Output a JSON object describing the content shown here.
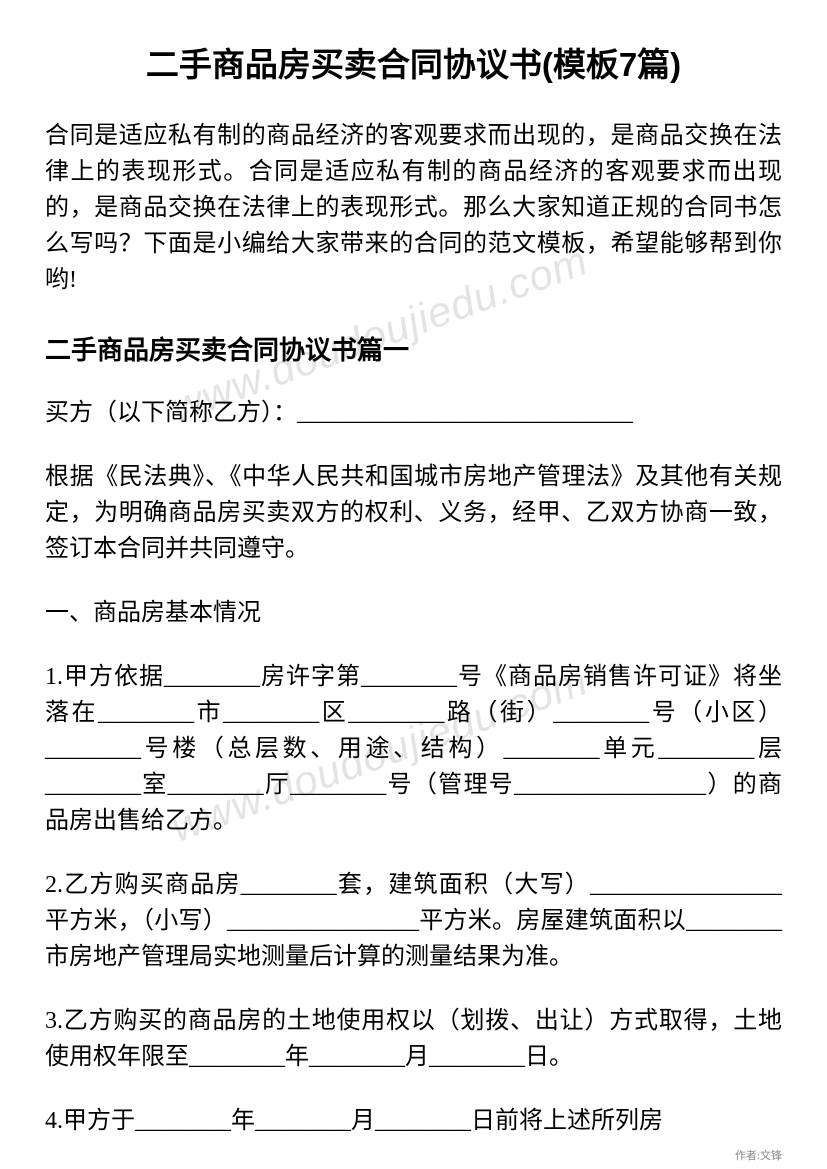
{
  "title": "二手商品房买卖合同协议书(模板7篇)",
  "intro": "合同是适应私有制的商品经济的客观要求而出现的，是商品交换在法律上的表现形式。合同是适应私有制的商品经济的客观要求而出现的，是商品交换在法律上的表现形式。那么大家知道正规的合同书怎么写吗？下面是小编给大家带来的合同的范文模板，希望能够帮到你哟!",
  "section_title": "二手商品房买卖合同协议书篇一",
  "paragraphs": {
    "p1": "买方（以下简称乙方）：____________________________",
    "p2": "根据《民法典》、《中华人民共和国城市房地产管理法》及其他有关规定，为明确商品房买卖双方的权利、义务，经甲、乙双方协商一致，签订本合同并共同遵守。",
    "p3": "一、商品房基本情况",
    "p4": "1.甲方依据________房许字第________号《商品房销售许可证》将坐落在________市________区________路（街）________号（小区）________号楼（总层数、用途、结构）________单元________层________室________厅________号（管理号________________）的商品房出售给乙方。",
    "p5": "2.乙方购买商品房________套，建筑面积（大写）________________平方米，（小写）________________平方米。房屋建筑面积以________市房地产管理局实地测量后计算的测量结果为准。",
    "p6": "3.乙方购买的商品房的土地使用权以（划拨、出让）方式取得，土地使用权年限至________年________月________日。",
    "p7": "4.甲方于________年________月________日前将上述所列房"
  },
  "watermark": "www.doudoujiedu.com",
  "author": "作者:文锋"
}
